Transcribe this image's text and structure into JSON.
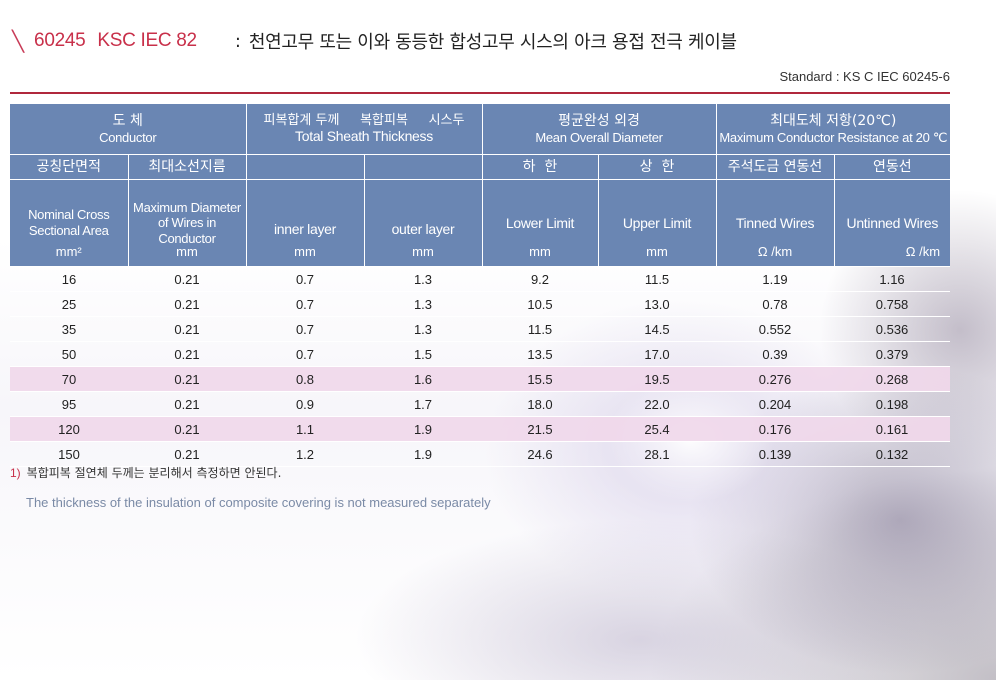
{
  "title": {
    "code_parts": [
      "60245",
      "KSC IEC 82"
    ],
    "colon": ":",
    "description": "천연고무 또는 이와 동등한 합성고무 시스의 아크 용접 전극 케이블"
  },
  "standard": "Standard : KS C IEC 60245-6",
  "header": {
    "conductor": {
      "ko": "도 체",
      "en": "Conductor"
    },
    "sheath": {
      "ko": "피복합계 두께     복합피복     시스두",
      "en": "Total Sheath Thickness"
    },
    "diameter": {
      "ko": "평균완성 외경",
      "en": "Mean Overall Diameter"
    },
    "resistance": {
      "ko": "최대도체 저항(20℃)",
      "en": "Maximum Conductor Resistance at 20 ℃"
    },
    "nominal": {
      "ko": "공칭단면적",
      "en": "Nominal Cross Sectional Area",
      "unit": "mm²"
    },
    "max_wire": {
      "ko": "최대소선지름",
      "en": "Maximum Diameter of Wires in Conductor",
      "unit": "mm"
    },
    "inner": {
      "en": "inner layer",
      "unit": "mm"
    },
    "outer": {
      "en": "outer layer",
      "unit": "mm"
    },
    "lower": {
      "ko": "하  한",
      "en": "Lower Limit",
      "unit": "mm"
    },
    "upper": {
      "ko": "상  한",
      "en": "Upper Limit",
      "unit": "mm"
    },
    "tinned": {
      "ko": "주석도금 연동선",
      "en": "Tinned Wires",
      "unit": "Ω /km"
    },
    "untinned": {
      "ko": "연동선",
      "en": "Untinned Wires",
      "unit": "Ω /km"
    }
  },
  "rows": [
    {
      "area": "16",
      "maxd": "0.21",
      "inner": "0.7",
      "outer": "1.3",
      "lower": "9.2",
      "upper": "11.5",
      "tinned": "1.19",
      "untinned": "1.16",
      "highlight": false
    },
    {
      "area": "25",
      "maxd": "0.21",
      "inner": "0.7",
      "outer": "1.3",
      "lower": "10.5",
      "upper": "13.0",
      "tinned": "0.78",
      "untinned": "0.758",
      "highlight": false
    },
    {
      "area": "35",
      "maxd": "0.21",
      "inner": "0.7",
      "outer": "1.3",
      "lower": "11.5",
      "upper": "14.5",
      "tinned": "0.552",
      "untinned": "0.536",
      "highlight": false
    },
    {
      "area": "50",
      "maxd": "0.21",
      "inner": "0.7",
      "outer": "1.5",
      "lower": "13.5",
      "upper": "17.0",
      "tinned": "0.39",
      "untinned": "0.379",
      "highlight": false
    },
    {
      "area": "70",
      "maxd": "0.21",
      "inner": "0.8",
      "outer": "1.6",
      "lower": "15.5",
      "upper": "19.5",
      "tinned": "0.276",
      "untinned": "0.268",
      "highlight": true
    },
    {
      "area": "95",
      "maxd": "0.21",
      "inner": "0.9",
      "outer": "1.7",
      "lower": "18.0",
      "upper": "22.0",
      "tinned": "0.204",
      "untinned": "0.198",
      "highlight": false
    },
    {
      "area": "120",
      "maxd": "0.21",
      "inner": "1.1",
      "outer": "1.9",
      "lower": "21.5",
      "upper": "25.4",
      "tinned": "0.176",
      "untinned": "0.161",
      "highlight": true
    },
    {
      "area": "150",
      "maxd": "0.21",
      "inner": "1.2",
      "outer": "1.9",
      "lower": "24.6",
      "upper": "28.1",
      "tinned": "0.139",
      "untinned": "0.132",
      "highlight": false
    }
  ],
  "notes": {
    "num": "1)",
    "ko": "복합피복 절연체 두께는 분리해서 측정하면 안된다.",
    "en": "The thickness of the insulation of composite covering is not measured separately"
  },
  "colors": {
    "header_bg": "#6a86b3",
    "accent": "#c8304a",
    "row_highlight": "#f0d8ea"
  }
}
